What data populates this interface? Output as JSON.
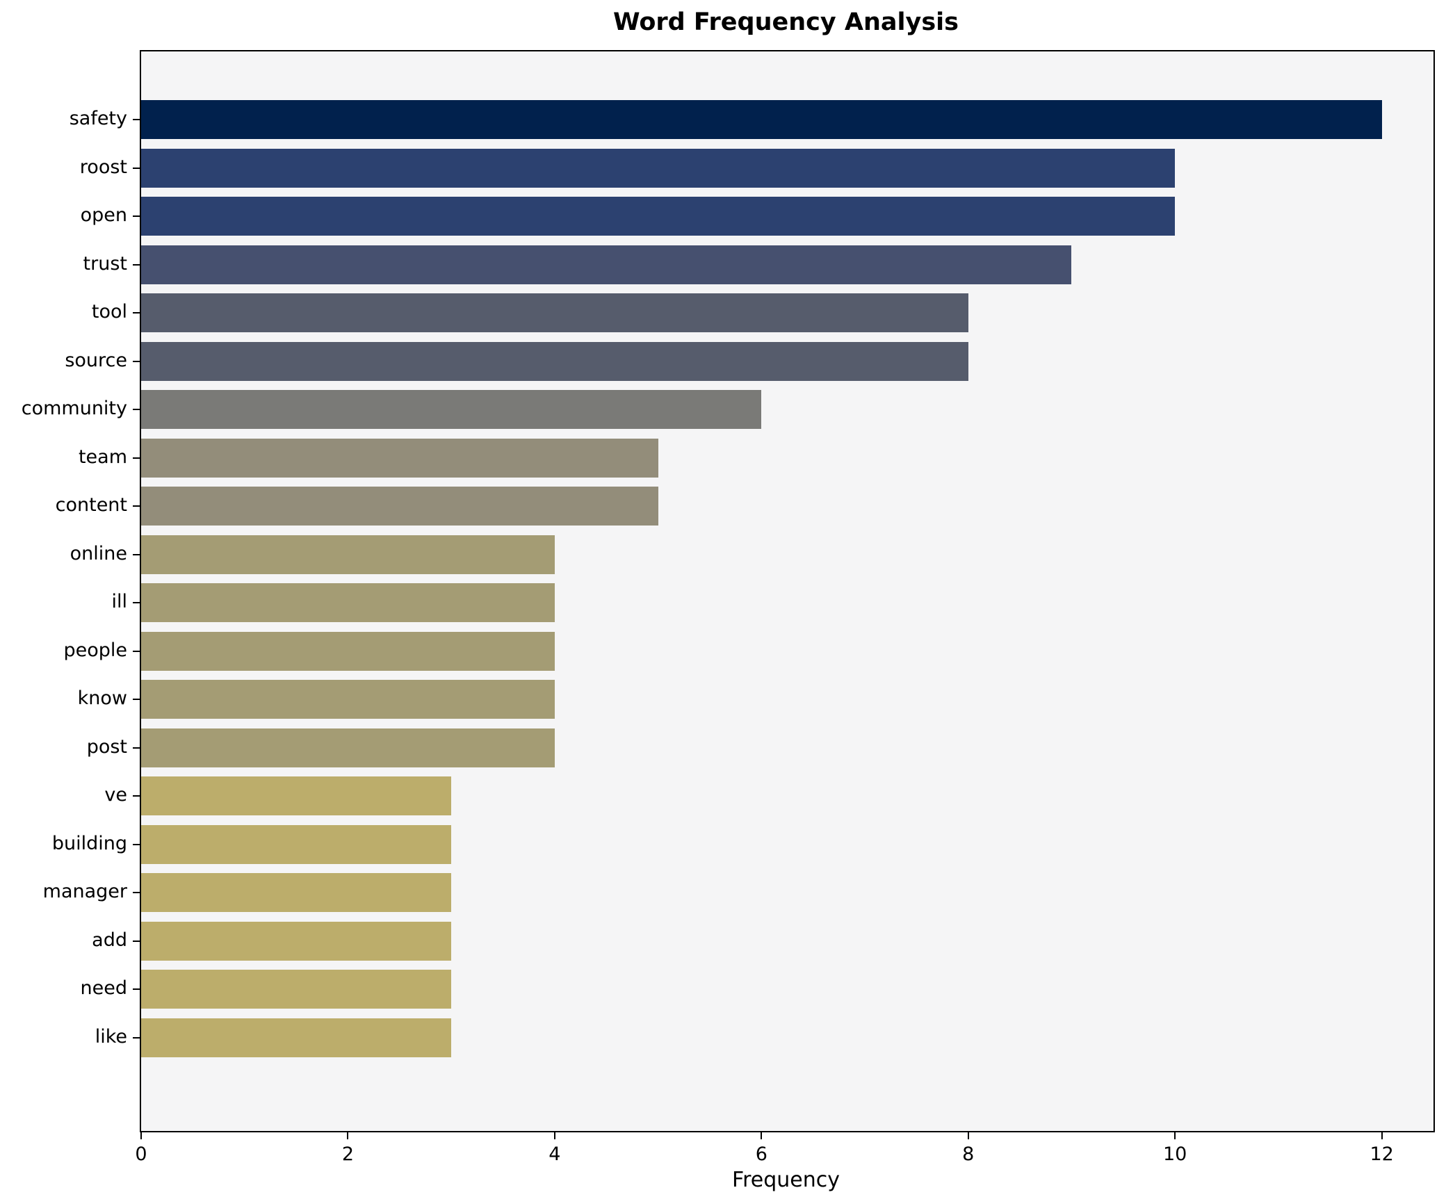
{
  "chart_data": {
    "type": "bar",
    "orientation": "horizontal",
    "title": "Word Frequency Analysis",
    "xlabel": "Frequency",
    "ylabel": "",
    "categories": [
      "safety",
      "roost",
      "open",
      "trust",
      "tool",
      "source",
      "community",
      "team",
      "content",
      "online",
      "ill",
      "people",
      "know",
      "post",
      "ve",
      "building",
      "manager",
      "add",
      "need",
      "like"
    ],
    "values": [
      12,
      10,
      10,
      9,
      8,
      8,
      6,
      5,
      5,
      4,
      4,
      4,
      4,
      4,
      3,
      3,
      3,
      3,
      3,
      3
    ],
    "bar_colors": [
      "#01214d",
      "#2c4170",
      "#2c4170",
      "#46506f",
      "#565c6c",
      "#565c6c",
      "#7a7a77",
      "#938d7a",
      "#938d7a",
      "#a49c74",
      "#a49c74",
      "#a49c74",
      "#a49c74",
      "#a49c74",
      "#bcad6b",
      "#bcad6b",
      "#bcad6b",
      "#bcad6b",
      "#bcad6b",
      "#bcad6b"
    ],
    "x_tick_values": [
      0,
      2,
      4,
      6,
      8,
      10,
      12
    ],
    "x_tick_labels": [
      "0",
      "2",
      "4",
      "6",
      "8",
      "10",
      "12"
    ],
    "xlim": [
      0,
      12.5
    ],
    "grid": false,
    "legend_position": "none",
    "plot_background": "#f5f5f6",
    "axis_color": "#000000"
  }
}
